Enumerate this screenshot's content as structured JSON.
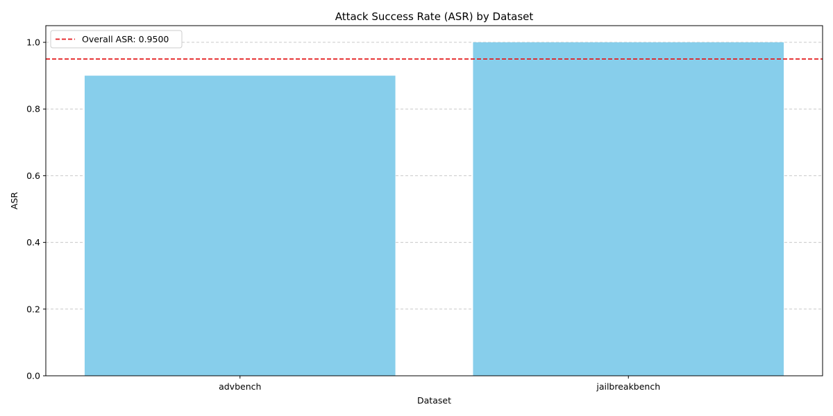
{
  "chart_data": {
    "type": "bar",
    "title": "Attack Success Rate (ASR) by Dataset",
    "xlabel": "Dataset",
    "ylabel": "ASR",
    "categories": [
      "advbench",
      "jailbreakbench"
    ],
    "values": [
      0.9,
      1.0
    ],
    "ylim": [
      0,
      1.05
    ],
    "yticks": [
      0.0,
      0.2,
      0.4,
      0.6,
      0.8,
      1.0
    ],
    "ytick_labels": [
      "0.0",
      "0.2",
      "0.4",
      "0.6",
      "0.8",
      "1.0"
    ],
    "bar_color": "#87ceeb",
    "grid": "y-dashed",
    "reference_line": {
      "value": 0.95,
      "label": "Overall ASR: 0.9500",
      "color": "#e41a1c",
      "style": "dashed"
    },
    "legend": {
      "placement": "top-left"
    }
  }
}
